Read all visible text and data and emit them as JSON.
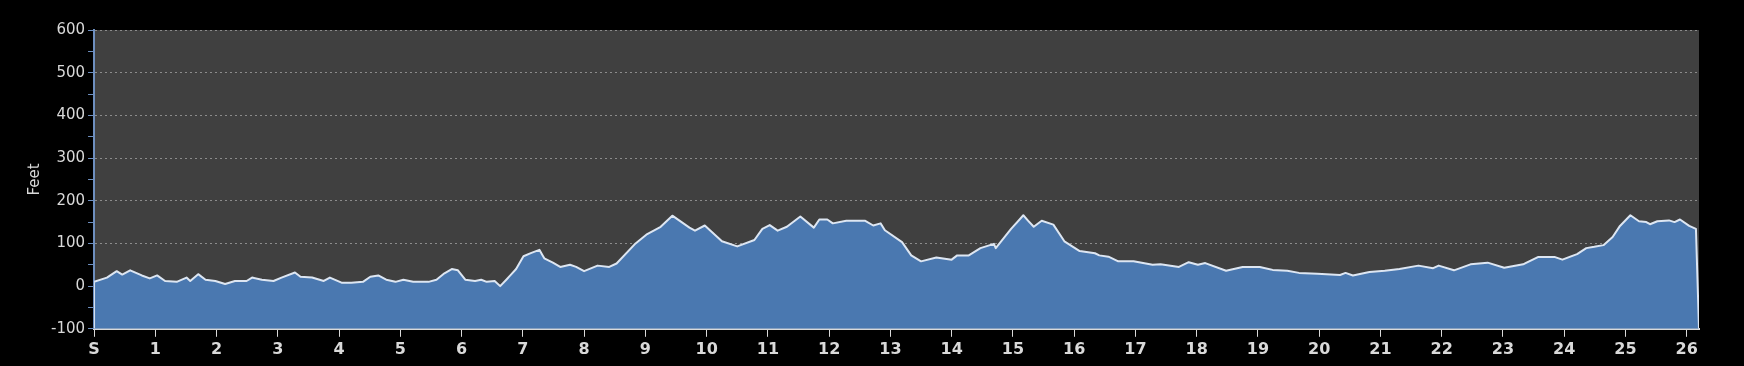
{
  "chart_data": {
    "type": "area",
    "ylabel": "Feet",
    "xlim": [
      0,
      26.2
    ],
    "ylim": [
      -100,
      600
    ],
    "xticks": [
      {
        "value": 0,
        "label": "S"
      },
      1,
      2,
      3,
      4,
      5,
      6,
      7,
      8,
      9,
      10,
      11,
      12,
      13,
      14,
      15,
      16,
      17,
      18,
      19,
      20,
      21,
      22,
      23,
      24,
      25,
      26
    ],
    "yticks": [
      -100,
      {
        "value": -50,
        "label": null
      },
      0,
      {
        "value": 50,
        "label": null
      },
      100,
      {
        "value": 150,
        "label": null
      },
      200,
      {
        "value": 250,
        "label": null
      },
      300,
      {
        "value": 350,
        "label": null
      },
      400,
      {
        "value": 450,
        "label": null
      },
      500,
      {
        "value": 550,
        "label": null
      },
      600
    ],
    "grid": "y",
    "legend": false,
    "marker": "none",
    "series": [
      {
        "color": "#4a78b0",
        "x": [
          0,
          0,
          0.21,
          0.37,
          0.46,
          0.59,
          0.78,
          0.91,
          1.03,
          1.16,
          1.35,
          1.51,
          1.57,
          1.7,
          1.82,
          1.98,
          2.14,
          2.3,
          2.49,
          2.58,
          2.74,
          2.93,
          3.06,
          3.28,
          3.37,
          3.56,
          3.75,
          3.85,
          4.04,
          4.2,
          4.39,
          4.51,
          4.64,
          4.77,
          4.92,
          5.05,
          5.21,
          5.46,
          5.59,
          5.72,
          5.84,
          5.94,
          6.06,
          6.22,
          6.32,
          6.41,
          6.54,
          6.63,
          6.73,
          6.89,
          7.01,
          7.14,
          7.27,
          7.35,
          7.49,
          7.61,
          7.77,
          7.87,
          8.0,
          8.22,
          8.41,
          8.53,
          8.84,
          9.03,
          9.25,
          9.44,
          9.72,
          9.81,
          9.97,
          10.25,
          10.5,
          10.78,
          10.91,
          11.03,
          11.16,
          11.31,
          11.53,
          11.75,
          11.84,
          11.97,
          12.06,
          12.28,
          12.59,
          12.72,
          12.84,
          12.91,
          13.19,
          13.34,
          13.5,
          13.75,
          14.0,
          14.09,
          14.28,
          14.47,
          14.69,
          14.72,
          14.97,
          15.17,
          15.25,
          15.34,
          15.47,
          15.66,
          15.84,
          16.09,
          16.34,
          16.41,
          16.56,
          16.72,
          16.97,
          17.28,
          17.41,
          17.71,
          17.87,
          18.02,
          18.14,
          18.48,
          18.75,
          19.03,
          19.24,
          19.48,
          19.67,
          19.97,
          20.34,
          20.43,
          20.55,
          20.82,
          21.07,
          21.31,
          21.62,
          21.86,
          21.95,
          22.2,
          22.47,
          22.75,
          23.02,
          23.33,
          23.57,
          23.85,
          23.97,
          24.21,
          24.36,
          24.49,
          24.64,
          24.79,
          24.91,
          25.08,
          25.22,
          25.34,
          25.4,
          25.52,
          25.71,
          25.8,
          25.89,
          26.04,
          26.15,
          26.2
        ],
        "values": [
          -100,
          10,
          20,
          35,
          27,
          37,
          25,
          18,
          25,
          12,
          10,
          20,
          12,
          28,
          15,
          12,
          5,
          12,
          12,
          20,
          15,
          12,
          20,
          32,
          22,
          20,
          12,
          20,
          8,
          8,
          10,
          22,
          25,
          15,
          10,
          15,
          10,
          10,
          15,
          30,
          40,
          37,
          15,
          12,
          15,
          10,
          12,
          0,
          15,
          40,
          70,
          78,
          85,
          65,
          55,
          45,
          50,
          45,
          35,
          48,
          45,
          53,
          100,
          122,
          139,
          165,
          137,
          130,
          142,
          105,
          93,
          108,
          134,
          143,
          130,
          139,
          163,
          137,
          156,
          156,
          147,
          153,
          153,
          142,
          147,
          131,
          103,
          72,
          58,
          67,
          62,
          72,
          72,
          89,
          99,
          89,
          134,
          166,
          153,
          139,
          153,
          144,
          105,
          82,
          77,
          72,
          69,
          58,
          58,
          50,
          51,
          45,
          56,
          50,
          54,
          36,
          45,
          45,
          38,
          36,
          31,
          29,
          26,
          31,
          25,
          33,
          36,
          40,
          48,
          42,
          48,
          37,
          51,
          55,
          43,
          51,
          68,
          68,
          62,
          75,
          89,
          92,
          96,
          115,
          141,
          166,
          152,
          150,
          145,
          152,
          154,
          150,
          156,
          141,
          134,
          -100
        ]
      }
    ]
  }
}
